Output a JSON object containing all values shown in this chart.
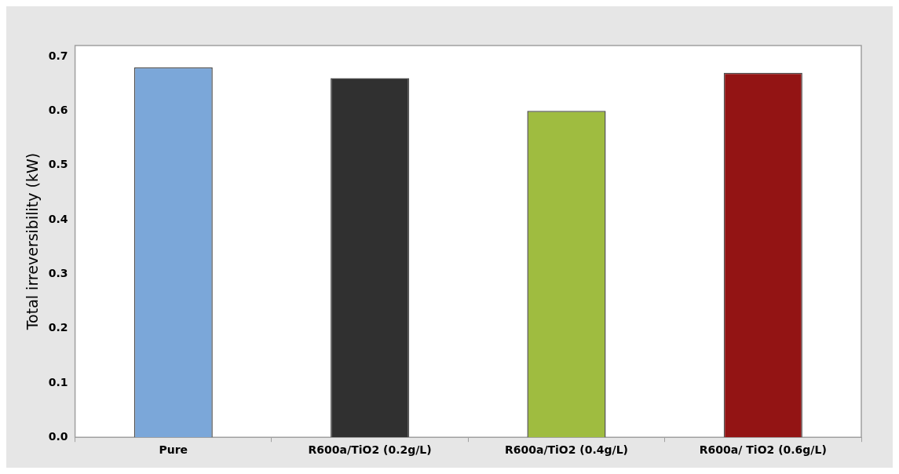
{
  "chart_data": {
    "type": "bar",
    "ylabel": "Total irreversibility (kW)",
    "categories": [
      "Pure",
      "R600a/TiO2 (0.2g/L)",
      "R600a/TiO2 (0.4g/L)",
      "R600a/ TiO2 (0.6g/L)"
    ],
    "values": [
      0.68,
      0.66,
      0.6,
      0.67
    ],
    "colors": [
      "#7ba7d9",
      "#303030",
      "#9fbc40",
      "#931414"
    ],
    "ylim": [
      0,
      0.72
    ],
    "yticks": [
      {
        "value": 0,
        "label": "0.0"
      },
      0.1,
      0.2,
      0.3,
      0.4,
      0.5,
      0.6,
      0.7
    ],
    "grid": false,
    "legend": false
  }
}
